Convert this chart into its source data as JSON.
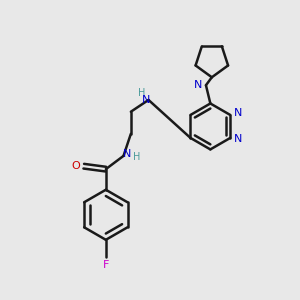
{
  "bg_color": "#e8e8e8",
  "bond_color": "#1a1a1a",
  "N_color": "#0000cc",
  "O_color": "#cc0000",
  "F_color": "#cc00cc",
  "H_color": "#4a9a9a",
  "line_width": 1.8,
  "fig_size": [
    3.0,
    3.0
  ],
  "dpi": 100,
  "xlim": [
    0,
    10
  ],
  "ylim": [
    0,
    10
  ]
}
